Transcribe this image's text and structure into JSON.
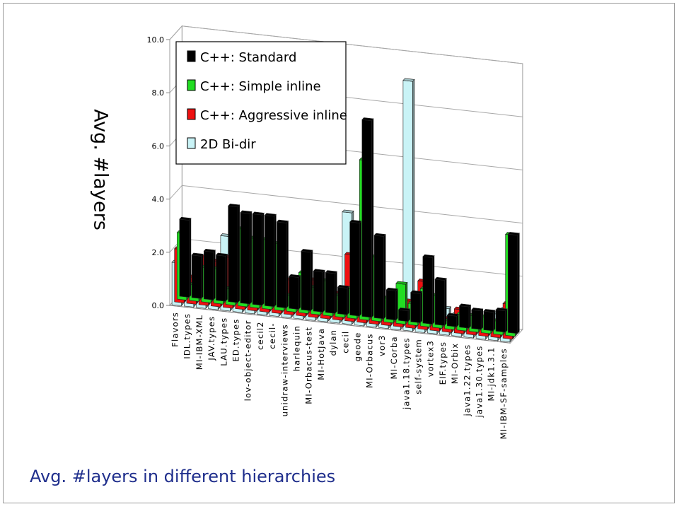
{
  "caption": "Avg. #layers in different hierarchies",
  "chart_data": {
    "type": "bar",
    "subtype": "3d-clustered",
    "ylabel": "Avg. #layers",
    "ylim": [
      0,
      10
    ],
    "yticks": [
      "0.0",
      "2.0",
      "4.0",
      "6.0",
      "8.0",
      "10.0"
    ],
    "grid": true,
    "legend_position": "top-inside",
    "categories": [
      "Flavors",
      "IDL.types",
      "MI-IBM-XML",
      "JAV.types",
      "LAU.types",
      "ED.types",
      "lov-object-editor",
      "cecil2",
      "cecil-",
      "unidraw-interviews",
      "harlequin",
      "MI-Orbacus-test",
      "MI-HotJava",
      "dylan",
      "cecil",
      "geode",
      "MI-Orbacus",
      "vor3",
      "MI-Corba",
      "java1.18.types",
      "self-system",
      "vortex3",
      "EIF.types",
      "MI-Orbix",
      "java1.22.types",
      "java1.30.types",
      "MI-jdk1.3.1",
      "MI-IBM-SF-samples"
    ],
    "series": [
      {
        "name": "C++: Standard",
        "color": "#000000",
        "values": [
          2.9,
          1.6,
          1.8,
          1.7,
          3.6,
          3.4,
          3.4,
          3.4,
          3.2,
          1.2,
          2.2,
          1.5,
          1.5,
          1.0,
          3.5,
          7.4,
          3.1,
          1.1,
          0.4,
          1.1,
          2.5,
          1.7,
          0.4,
          0.8,
          0.7,
          0.7,
          0.8,
          3.7
        ]
      },
      {
        "name": "C++: Simple inline",
        "color": "#22dd22",
        "values": [
          2.5,
          0.6,
          1.3,
          1.3,
          0.6,
          2.9,
          2.6,
          2.6,
          2.5,
          0.6,
          1.5,
          1.0,
          1.3,
          0.8,
          1.1,
          6.0,
          2.4,
          0.9,
          1.5,
          0.8,
          1.4,
          1.2,
          0.3,
          0.6,
          0.6,
          0.6,
          0.5,
          3.8
        ]
      },
      {
        "name": "C++: Aggressive inline",
        "color": "#ee1111",
        "values": [
          2.0,
          1.0,
          1.8,
          1.7,
          1.9,
          2.0,
          1.8,
          2.0,
          2.0,
          1.3,
          1.1,
          1.4,
          1.4,
          1.0,
          2.5,
          1.5,
          1.6,
          0.7,
          0.6,
          1.0,
          1.8,
          1.0,
          0.5,
          0.9,
          0.6,
          0.6,
          0.6,
          1.3
        ]
      },
      {
        "name": "2D Bi-dir",
        "color": "#c9f3f6",
        "values": [
          1.6,
          0.9,
          1.4,
          0.8,
          2.8,
          3.0,
          1.6,
          1.5,
          0.4,
          1.2,
          0.7,
          1.0,
          1.0,
          0.8,
          4.2,
          0.4,
          0.3,
          1.0,
          1.0,
          9.4,
          1.2,
          0.9,
          1.0,
          0.8,
          0.6,
          0.8,
          1.0,
          1.2
        ]
      }
    ]
  }
}
